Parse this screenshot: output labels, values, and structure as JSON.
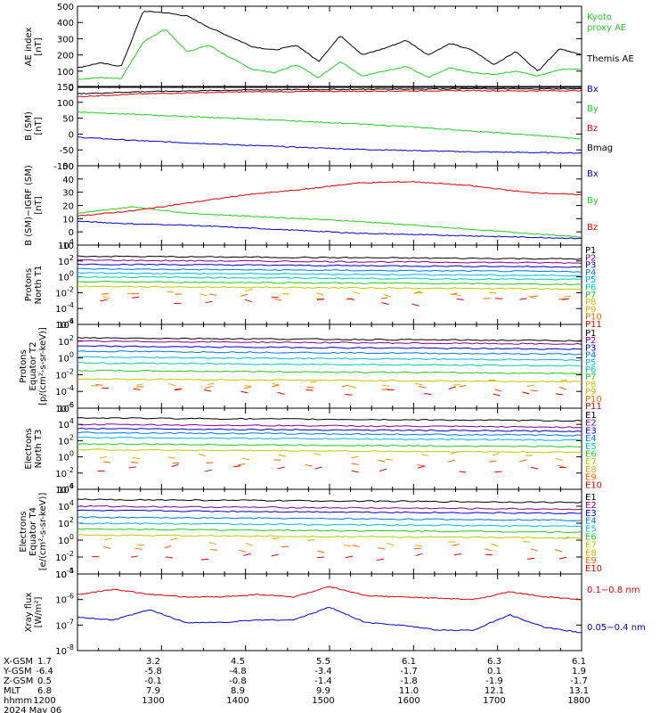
{
  "colors": {
    "black": "#000000",
    "red": "#e00000",
    "green": "#22cc22",
    "blue": "#0000cc",
    "kyoto": "#22cc22",
    "p_seq": [
      "#000000",
      "#880088",
      "#0000cc",
      "#0077ee",
      "#00bbee",
      "#00ccaa",
      "#22cc22",
      "#bbcc00",
      "#ddaa00",
      "#ee6600",
      "#dd0000"
    ],
    "e_seq": [
      "#000000",
      "#880088",
      "#0000cc",
      "#0077ee",
      "#00bbee",
      "#22cc22",
      "#bbcc00",
      "#ddaa00",
      "#ee6600",
      "#dd0000"
    ]
  },
  "chart_data": [
    {
      "type": "line",
      "id": "ae",
      "ylabel": "AE index\n[nT]",
      "ylim": [
        0,
        500
      ],
      "yticks": [
        "0",
        "100",
        "200",
        "300",
        "400",
        "500"
      ],
      "x": [
        "1200",
        "1230",
        "1245",
        "1300",
        "1315",
        "1330",
        "1345",
        "1400",
        "1415",
        "1430",
        "1445",
        "1500",
        "1515",
        "1530",
        "1545",
        "1600",
        "1615",
        "1630",
        "1645",
        "1700",
        "1715",
        "1730",
        "1745",
        "1800"
      ],
      "series": [
        {
          "name": "Kyoto\nproxy AE",
          "color": "green",
          "values": [
            50,
            60,
            55,
            280,
            360,
            220,
            260,
            180,
            110,
            90,
            140,
            60,
            160,
            70,
            100,
            130,
            60,
            120,
            90,
            80,
            100,
            70,
            110,
            115
          ]
        },
        {
          "name": "Themis AE",
          "color": "black",
          "values": [
            120,
            150,
            130,
            470,
            460,
            440,
            370,
            310,
            250,
            230,
            260,
            160,
            320,
            200,
            240,
            290,
            200,
            270,
            230,
            140,
            220,
            100,
            240,
            200
          ]
        }
      ]
    },
    {
      "type": "line",
      "id": "bsm",
      "ylabel": "B (SM)\n[nT]",
      "ylim": [
        -100,
        150
      ],
      "yticks": [
        "-100",
        "-50",
        "0",
        "50",
        "100",
        "150"
      ],
      "series": [
        {
          "name": "Bx",
          "color": "blue",
          "values": [
            -10,
            -20,
            -28,
            -35,
            -42,
            -48,
            -52,
            -56,
            -58,
            -60
          ]
        },
        {
          "name": "By",
          "color": "green",
          "values": [
            70,
            62,
            55,
            48,
            40,
            32,
            22,
            10,
            -2,
            -15
          ]
        },
        {
          "name": "Bz",
          "color": "red",
          "values": [
            118,
            126,
            130,
            133,
            134,
            135,
            136,
            137,
            136,
            137
          ]
        },
        {
          "name": "Bmag",
          "color": "black",
          "values": [
            127,
            133,
            136,
            139,
            140,
            141,
            142,
            143,
            142,
            143
          ]
        }
      ]
    },
    {
      "type": "line",
      "id": "bigrf",
      "ylabel": "B (SM)−IGRF (SM)\n[nT]",
      "ylim": [
        -10,
        50
      ],
      "yticks": [
        "-10",
        "0",
        "10",
        "20",
        "30",
        "40",
        "50"
      ],
      "series": [
        {
          "name": "Bx",
          "color": "blue",
          "values": [
            8,
            6,
            5,
            3,
            1,
            -1,
            -2,
            -3,
            -4,
            -5
          ]
        },
        {
          "name": "By",
          "color": "green",
          "values": [
            14,
            19,
            14,
            12,
            10,
            8,
            5,
            2,
            -1,
            -4
          ]
        },
        {
          "name": "Bz",
          "color": "red",
          "values": [
            12,
            16,
            22,
            28,
            32,
            37,
            38,
            35,
            30,
            28
          ]
        }
      ]
    },
    {
      "type": "line",
      "id": "pn",
      "log": true,
      "ylabel": "Protons\nNorth T1",
      "ylim": [
        -6,
        4
      ],
      "yticks": [
        "10^-6",
        "10^-4",
        "10^-2",
        "10^0",
        "10^2",
        "10^4"
      ],
      "labels": [
        "P1",
        "P2",
        "P3",
        "P4",
        "P5",
        "P6",
        "P7",
        "P8",
        "P9",
        "P10",
        "P11"
      ],
      "levels": [
        2.6,
        2.1,
        1.6,
        1.0,
        0.5,
        0.0,
        -0.6,
        -1.2,
        -2.2,
        -2.5,
        -3.0
      ]
    },
    {
      "type": "line",
      "id": "pe",
      "log": true,
      "ylabel": "Protons\nEquator T2\n[p/(cm²-s-sr-keV)]",
      "ylim": [
        -6,
        4
      ],
      "yticks": [
        "10^-6",
        "10^-4",
        "10^-2",
        "10^0",
        "10^2",
        "10^4"
      ],
      "labels": [
        "P1",
        "P2",
        "P3",
        "P4",
        "P5",
        "P6",
        "P7",
        "P8",
        "P9",
        "P10",
        "P11"
      ],
      "levels": [
        2.4,
        2.0,
        1.4,
        0.8,
        0.1,
        -0.6,
        -1.5,
        -2.5,
        -3.0,
        -3.5,
        -4.0
      ]
    },
    {
      "type": "line",
      "id": "en",
      "log": true,
      "ylabel": "Electrons\nNorth T3",
      "ylim": [
        -4,
        6
      ],
      "yticks": [
        "10^-4",
        "10^-2",
        "10^0",
        "10^2",
        "10^4",
        "10^6"
      ],
      "labels": [
        "E1",
        "E2",
        "E3",
        "E4",
        "E5",
        "E6",
        "E7",
        "E8",
        "E9",
        "E10"
      ],
      "levels": [
        4.8,
        4.0,
        3.5,
        3.0,
        2.4,
        1.6,
        0.9,
        0.1,
        -0.7,
        -1.6
      ]
    },
    {
      "type": "line",
      "id": "ee",
      "log": true,
      "ylabel": "Electrons\nEquator T4\n[e/(cm²-s-sr-keV)]",
      "ylim": [
        -4,
        6
      ],
      "yticks": [
        "10^-4",
        "10^-2",
        "10^0",
        "10^2",
        "10^4",
        "10^6"
      ],
      "labels": [
        "E1",
        "E2",
        "E3",
        "E4",
        "E5",
        "E6",
        "E7",
        "E8",
        "E9",
        "E10"
      ],
      "levels": [
        4.8,
        4.0,
        3.5,
        2.7,
        2.0,
        1.3,
        0.6,
        -0.2,
        -1.0,
        -2.0
      ]
    },
    {
      "type": "line",
      "id": "xray",
      "log": true,
      "ylabel": "Xray flux\n[W/m²]",
      "ylim": [
        -8,
        -5
      ],
      "yticks": [
        "10^-8",
        "10^-7",
        "10^-6",
        "10^-5"
      ],
      "series": [
        {
          "name": "0.1−0.8 nm",
          "color": "red",
          "values": [
            -5.8,
            -5.6,
            -5.8,
            -5.9,
            -5.9,
            -5.8,
            -5.9,
            -5.5,
            -5.85,
            -5.9,
            -5.95,
            -6.0,
            -5.7,
            -5.9,
            -6.0
          ]
        },
        {
          "name": "0.05−0.4 nm",
          "color": "blue",
          "values": [
            -6.7,
            -6.8,
            -6.4,
            -6.9,
            -6.9,
            -6.8,
            -6.8,
            -6.3,
            -6.9,
            -7.0,
            -7.2,
            -7.2,
            -6.6,
            -7.1,
            -7.3
          ]
        }
      ]
    }
  ],
  "xaxis": {
    "rows": [
      {
        "name": "X-GSM",
        "values": [
          "1.7",
          "3.2",
          "4.5",
          "5.5",
          "6.1",
          "6.3",
          "6.1"
        ]
      },
      {
        "name": "Y-GSM",
        "values": [
          "-6.4",
          "-5.8",
          "-4.8",
          "-3.4",
          "-1.7",
          "0.1",
          "1.9"
        ]
      },
      {
        "name": "Z-GSM",
        "values": [
          "0.5",
          "-0.1",
          "-0.8",
          "-1.4",
          "-1.8",
          "-1.9",
          "-1.7"
        ]
      },
      {
        "name": "MLT",
        "values": [
          "6.8",
          "7.9",
          "8.9",
          "9.9",
          "11.0",
          "12.1",
          "13.1"
        ]
      },
      {
        "name": "hhmm",
        "values": [
          "1200",
          "1300",
          "1400",
          "1500",
          "1600",
          "1700",
          "1800"
        ]
      }
    ],
    "date": "2024 May 06"
  }
}
